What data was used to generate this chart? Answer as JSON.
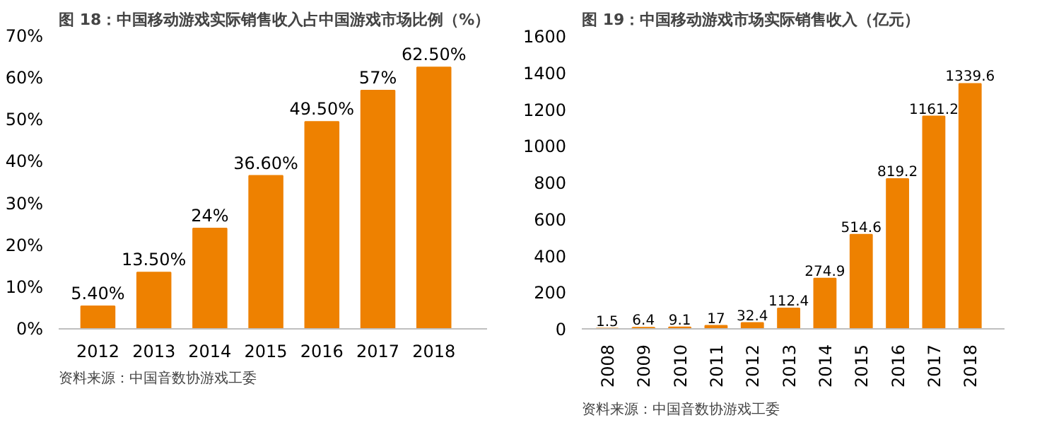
{
  "chart_data": [
    {
      "type": "bar",
      "title": "图 18：中国移动游戏实际销售收入占中国游戏市场比例（%）",
      "categories": [
        "2012",
        "2013",
        "2014",
        "2015",
        "2016",
        "2017",
        "2018"
      ],
      "values": [
        5.4,
        13.5,
        24,
        36.6,
        49.5,
        57,
        62.5
      ],
      "value_labels": [
        "5.40%",
        "13.50%",
        "24%",
        "36.60%",
        "49.50%",
        "57%",
        "62.50%"
      ],
      "color": "#ee8100",
      "ylim": [
        0,
        70
      ],
      "yticks": [
        {
          "value": 0,
          "label": "0%"
        },
        {
          "value": 10,
          "label": "10%"
        },
        {
          "value": 20,
          "label": "20%"
        },
        {
          "value": 30,
          "label": "30%"
        },
        {
          "value": 40,
          "label": "40%"
        },
        {
          "value": 50,
          "label": "50%"
        },
        {
          "value": 60,
          "label": "60%"
        },
        {
          "value": 70,
          "label": "70%"
        }
      ],
      "annotations": [
        "资料来源：中国音数协游戏工委"
      ]
    },
    {
      "type": "bar",
      "title": "图 19：中国移动游戏市场实际销售收入（亿元）",
      "categories": [
        "2008",
        "2009",
        "2010",
        "2011",
        "2012",
        "2013",
        "2014",
        "2015",
        "2016",
        "2017",
        "2018"
      ],
      "values": [
        1.5,
        6.4,
        9.1,
        17,
        32.4,
        112.4,
        274.9,
        514.6,
        819.2,
        1161.2,
        1339.6
      ],
      "data_labels": true,
      "color": "#ee8100",
      "ylim": [
        0,
        1600
      ],
      "yticks": [
        0,
        200,
        400,
        600,
        800,
        1000,
        1200,
        1400,
        1600
      ],
      "annotations": [
        "资料来源：中国音数协游戏工委"
      ]
    }
  ]
}
